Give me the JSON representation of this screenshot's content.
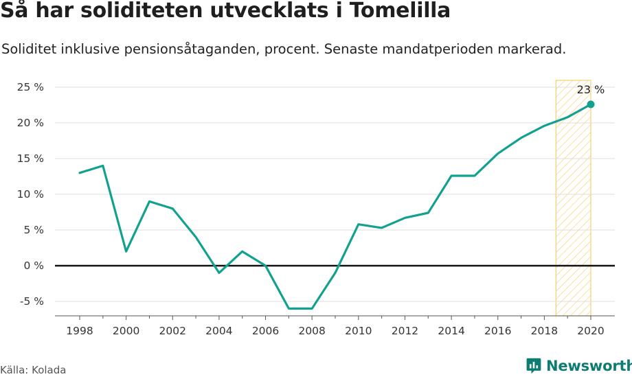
{
  "header": {
    "title": "Så har soliditeten utvecklats i Tomelilla",
    "subtitle": "Soliditet inklusive pensionsåtaganden, procent. Senaste mandatperioden markerad."
  },
  "footer": {
    "source": "Källa: Kolada",
    "brand": "Newsworthy"
  },
  "colors": {
    "line": "#12a08f",
    "highlight_stroke": "#f6cf6e",
    "zero_line": "#111111",
    "grid": "#dddddd",
    "brand": "#0d7d73"
  },
  "chart_data": {
    "type": "line",
    "x": [
      1998,
      1999,
      2000,
      2001,
      2002,
      2003,
      2004,
      2005,
      2006,
      2007,
      2008,
      2009,
      2010,
      2011,
      2012,
      2013,
      2014,
      2015,
      2016,
      2017,
      2018,
      2019,
      2020
    ],
    "series": [
      {
        "values": [
          13,
          14,
          2,
          9,
          8,
          4,
          -1,
          2,
          0,
          -6,
          -6,
          -1,
          5.8,
          5.3,
          6.7,
          7.4,
          12.6,
          12.6,
          15.7,
          17.9,
          19.6,
          20.8,
          22.6
        ]
      }
    ],
    "ylim": [
      -7,
      25
    ],
    "yticks": [
      -5,
      0,
      5,
      10,
      15,
      20,
      25
    ],
    "ytick_labels": [
      "-5 %",
      "0 %",
      "5 %",
      "10 %",
      "15 %",
      "20 %",
      "25 %"
    ],
    "xticks": [
      1998,
      2000,
      2002,
      2004,
      2006,
      2008,
      2010,
      2012,
      2014,
      2016,
      2018,
      2020
    ],
    "xtick_labels": [
      "1998",
      "2000",
      "2002",
      "2004",
      "2006",
      "2008",
      "2010",
      "2012",
      "2014",
      "2016",
      "2018",
      "2020"
    ],
    "highlight_range": [
      2018.5,
      2020
    ],
    "end_label": "23 %",
    "grid": true,
    "xlabel": "",
    "ylabel": ""
  }
}
